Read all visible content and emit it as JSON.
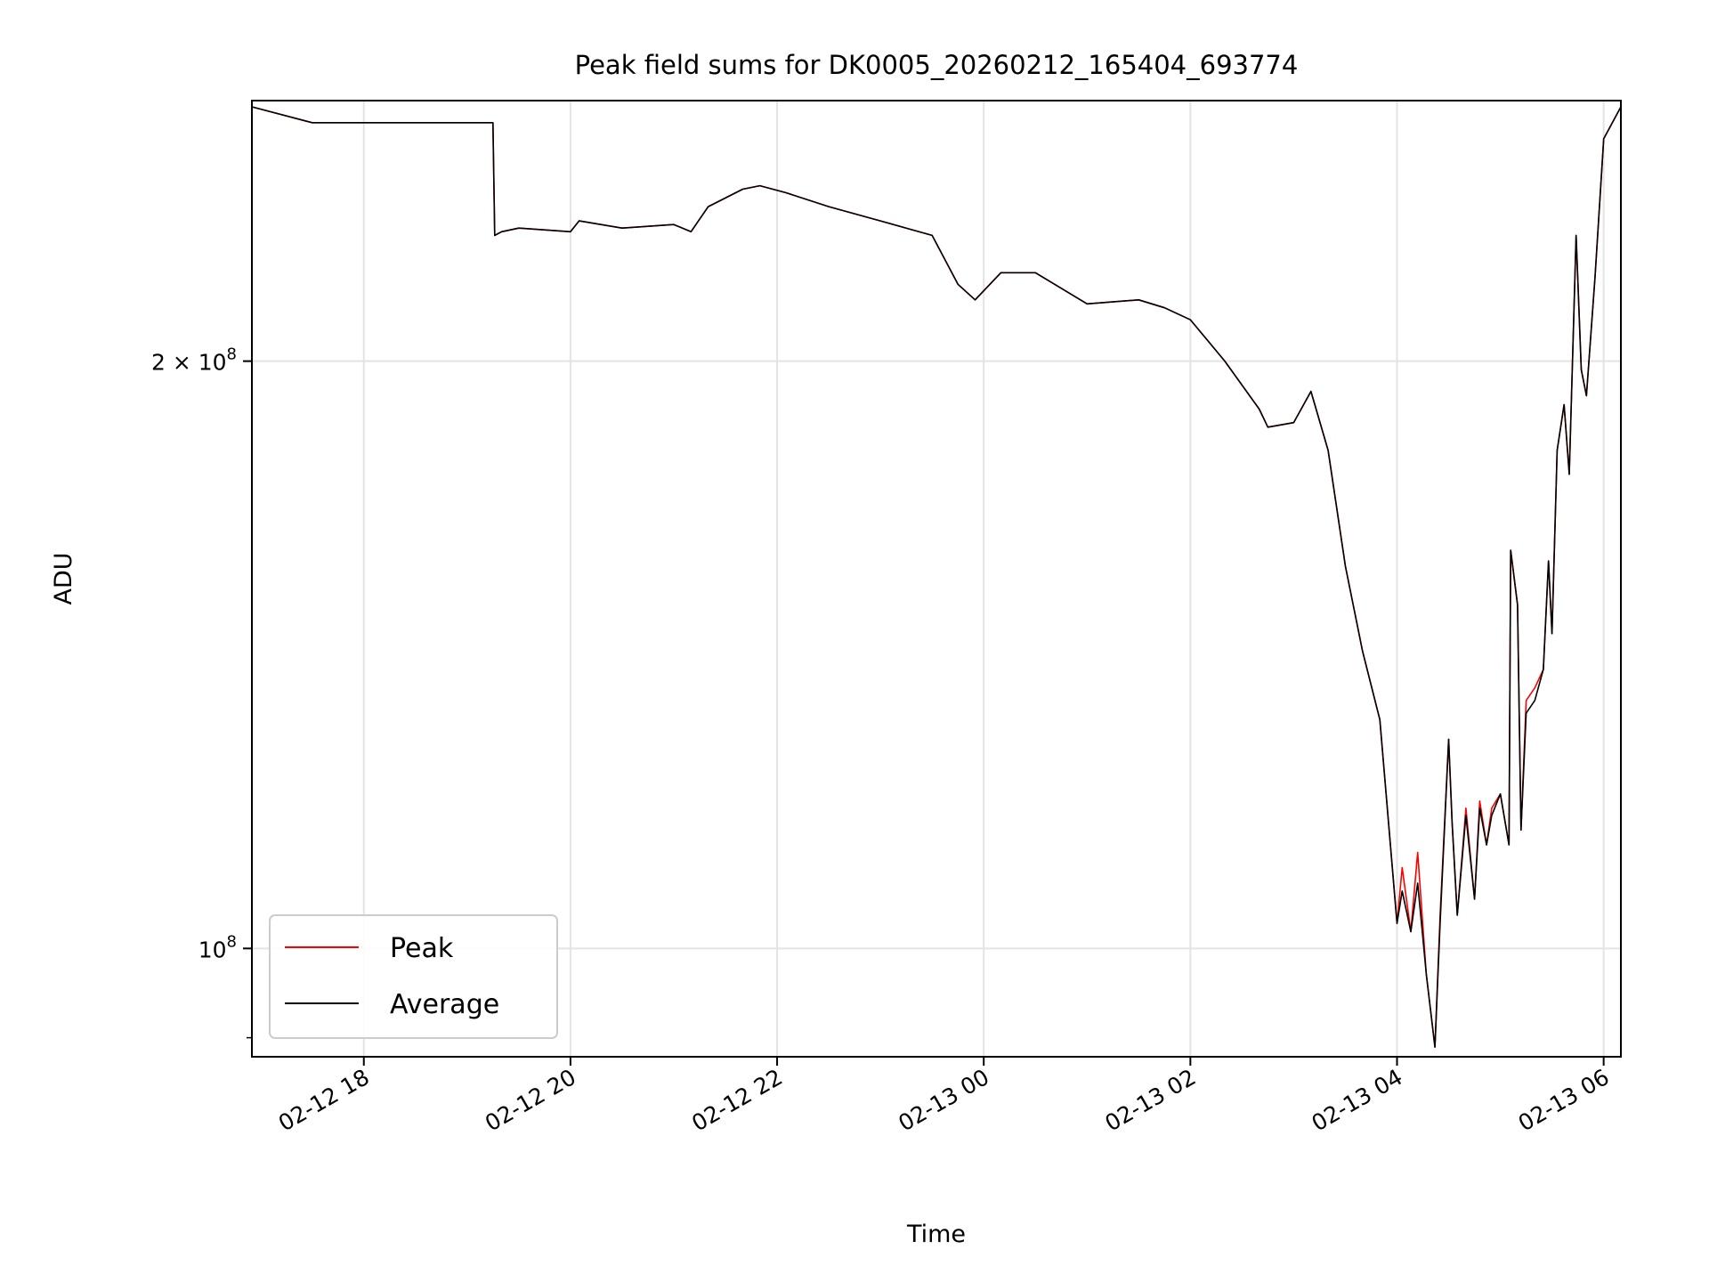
{
  "chart_data": {
    "type": "line",
    "title": "Peak field sums for DK0005_20260212_165404_693774",
    "xlabel": "Time",
    "ylabel": "ADU",
    "yscale": "log",
    "grid": true,
    "legend_position": "lower-left",
    "xlim": [
      "2026-02-12 16:55",
      "2026-02-13 06:10"
    ],
    "ylim": [
      88000000,
      272000000
    ],
    "x_ticks": [
      {
        "label": "02-12 18",
        "value": "2026-02-12 18:00"
      },
      {
        "label": "02-12 20",
        "value": "2026-02-12 20:00"
      },
      {
        "label": "02-12 22",
        "value": "2026-02-12 22:00"
      },
      {
        "label": "02-13 00",
        "value": "2026-02-13 00:00"
      },
      {
        "label": "02-13 02",
        "value": "2026-02-13 02:00"
      },
      {
        "label": "02-13 04",
        "value": "2026-02-13 04:00"
      },
      {
        "label": "02-13 06",
        "value": "2026-02-13 06:00"
      }
    ],
    "y_ticks": [
      {
        "label": "2 × 10",
        "exp": "8",
        "value": 200000000
      },
      {
        "label": "10",
        "exp": "8",
        "value": 100000000
      }
    ],
    "x": [
      "2026-02-12 16:55",
      "2026-02-12 17:30",
      "2026-02-12 18:00",
      "2026-02-12 19:15",
      "2026-02-12 19:16",
      "2026-02-12 19:20",
      "2026-02-12 19:30",
      "2026-02-12 20:00",
      "2026-02-12 20:05",
      "2026-02-12 20:30",
      "2026-02-12 21:00",
      "2026-02-12 21:10",
      "2026-02-12 21:20",
      "2026-02-12 21:40",
      "2026-02-12 21:50",
      "2026-02-12 22:05",
      "2026-02-12 22:30",
      "2026-02-12 23:00",
      "2026-02-12 23:30",
      "2026-02-12 23:45",
      "2026-02-12 23:55",
      "2026-02-13 00:10",
      "2026-02-13 00:30",
      "2026-02-13 01:00",
      "2026-02-13 01:30",
      "2026-02-13 01:45",
      "2026-02-13 02:00",
      "2026-02-13 02:20",
      "2026-02-13 02:40",
      "2026-02-13 02:45",
      "2026-02-13 03:00",
      "2026-02-13 03:10",
      "2026-02-13 03:20",
      "2026-02-13 03:30",
      "2026-02-13 03:40",
      "2026-02-13 03:50",
      "2026-02-13 04:00",
      "2026-02-13 04:03",
      "2026-02-13 04:08",
      "2026-02-13 04:12",
      "2026-02-13 04:17",
      "2026-02-13 04:22",
      "2026-02-13 04:25",
      "2026-02-13 04:30",
      "2026-02-13 04:32",
      "2026-02-13 04:35",
      "2026-02-13 04:40",
      "2026-02-13 04:45",
      "2026-02-13 04:48",
      "2026-02-13 04:52",
      "2026-02-13 04:55",
      "2026-02-13 05:00",
      "2026-02-13 05:05",
      "2026-02-13 05:06",
      "2026-02-13 05:10",
      "2026-02-13 05:12",
      "2026-02-13 05:15",
      "2026-02-13 05:20",
      "2026-02-13 05:25",
      "2026-02-13 05:28",
      "2026-02-13 05:30",
      "2026-02-13 05:33",
      "2026-02-13 05:37",
      "2026-02-13 05:40",
      "2026-02-13 05:44",
      "2026-02-13 05:47",
      "2026-02-13 05:50",
      "2026-02-13 05:55",
      "2026-02-13 06:00",
      "2026-02-13 06:10"
    ],
    "series": [
      {
        "name": "Peak",
        "color": "#ff0000",
        "values": [
          270000000,
          265000000,
          265000000,
          265000000,
          232000000,
          233000000,
          234000000,
          233000000,
          236000000,
          234000000,
          235000000,
          233000000,
          240000000,
          245000000,
          246000000,
          244000000,
          240000000,
          236000000,
          232000000,
          219000000,
          215000000,
          222000000,
          222000000,
          214000000,
          215000000,
          213000000,
          210000000,
          200000000,
          189000000,
          185000000,
          186000000,
          193000000,
          180000000,
          157000000,
          142000000,
          131000000,
          103000000,
          110000000,
          102000000,
          112000000,
          97000000,
          89000000,
          104000000,
          128000000,
          116000000,
          104000000,
          118000000,
          106000000,
          119000000,
          113000000,
          118000000,
          120000000,
          113000000,
          160000000,
          150000000,
          115000000,
          134000000,
          136000000,
          139000000,
          158000000,
          145000000,
          180000000,
          190000000,
          175000000,
          232000000,
          198000000,
          192000000,
          221000000,
          260000000,
          270000000
        ]
      },
      {
        "name": "Average",
        "color": "#000000",
        "values": [
          270000000,
          265000000,
          265000000,
          265000000,
          232000000,
          233000000,
          234000000,
          233000000,
          236000000,
          234000000,
          235000000,
          233000000,
          240000000,
          245000000,
          246000000,
          244000000,
          240000000,
          236000000,
          232000000,
          219000000,
          215000000,
          222000000,
          222000000,
          214000000,
          215000000,
          213000000,
          210000000,
          200000000,
          189000000,
          185000000,
          186000000,
          193000000,
          180000000,
          157000000,
          142000000,
          131000000,
          103000000,
          107000000,
          102000000,
          108000000,
          97000000,
          89000000,
          103000000,
          128000000,
          116000000,
          104000000,
          117000000,
          106000000,
          118000000,
          113000000,
          117000000,
          120000000,
          113000000,
          160000000,
          150000000,
          115000000,
          132000000,
          134000000,
          139000000,
          158000000,
          145000000,
          180000000,
          190000000,
          175000000,
          232000000,
          198000000,
          192000000,
          221000000,
          260000000,
          270000000
        ]
      }
    ]
  }
}
